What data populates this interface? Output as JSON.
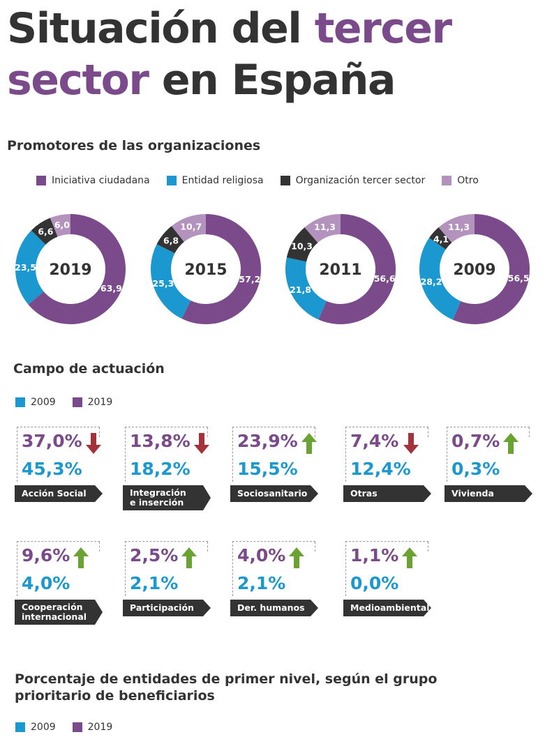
{
  "title": {
    "line1_dark": "Situación del",
    "line1_accent": "tercer",
    "line2_accent": "sector",
    "line2_dark": "en España"
  },
  "colors": {
    "purple": "#7a4a8a",
    "blue": "#1a98cf",
    "dark": "#333333",
    "light_purple": "#b393be",
    "up": "#6aa332",
    "down": "#a3323a"
  },
  "sections": {
    "promotores": "Promotores de las organizaciones",
    "campo": "Campo de actuación",
    "beneficiarios_line1": "Porcentaje de entidades de primer nivel, según el grupo",
    "beneficiarios_line2": "prioritario de beneficiarios"
  },
  "legend_promotores": [
    {
      "label": "Iniciativa ciudadana",
      "color": "#7a4a8a"
    },
    {
      "label": "Entidad religiosa",
      "color": "#1a98cf"
    },
    {
      "label": "Organización tercer sector",
      "color": "#333333"
    },
    {
      "label": "Otro",
      "color": "#b393be"
    }
  ],
  "legend_years": [
    {
      "label": "2009",
      "color": "#1a98cf"
    },
    {
      "label": "2019",
      "color": "#7a4a8a"
    }
  ],
  "legend_years_2": [
    {
      "label": "2009",
      "color": "#1a98cf"
    },
    {
      "label": "2019",
      "color": "#7a4a8a"
    }
  ],
  "chart_data": [
    {
      "type": "pie",
      "title": "Promotores de las organizaciones",
      "series_names": [
        "Iniciativa ciudadana",
        "Entidad religiosa",
        "Organización tercer sector",
        "Otro"
      ],
      "donuts": [
        {
          "year": "2019",
          "values": [
            63.9,
            23.5,
            6.6,
            6.0
          ],
          "labels": [
            "63,9",
            "23,5",
            "6,6",
            "6,0"
          ]
        },
        {
          "year": "2015",
          "values": [
            57.2,
            25.3,
            6.8,
            10.7
          ],
          "labels": [
            "57,2",
            "25,3",
            "6,8",
            "10,7"
          ]
        },
        {
          "year": "2011",
          "values": [
            56.6,
            21.8,
            10.3,
            11.3
          ],
          "labels": [
            "56,6",
            "21,8",
            "10,3",
            "11,3"
          ]
        },
        {
          "year": "2009",
          "values": [
            56.5,
            28.2,
            4.1,
            11.3
          ],
          "labels": [
            "56,5",
            "28,2",
            "4,1",
            "11,3"
          ]
        }
      ]
    },
    {
      "type": "table",
      "title": "Campo de actuación",
      "columns": [
        "2019",
        "2009"
      ],
      "rows": [
        {
          "label": "Acción Social",
          "v2019": "37,0%",
          "v2009": "45,3%",
          "trend": "down"
        },
        {
          "label": "Integración e inserción",
          "v2019": "13,8%",
          "v2009": "18,2%",
          "trend": "down"
        },
        {
          "label": "Sociosanitario",
          "v2019": "23,9%",
          "v2009": "15,5%",
          "trend": "up"
        },
        {
          "label": "Otras",
          "v2019": "7,4%",
          "v2009": "12,4%",
          "trend": "down"
        },
        {
          "label": "Vivienda",
          "v2019": "0,7%",
          "v2009": "0,3%",
          "trend": "up"
        },
        {
          "label": "Cooperación internacional",
          "v2019": "9,6%",
          "v2009": "4,0%",
          "trend": "up"
        },
        {
          "label": "Participación",
          "v2019": "2,5%",
          "v2009": "2,1%",
          "trend": "up"
        },
        {
          "label": "Der. humanos",
          "v2019": "4,0%",
          "v2009": "2,1%",
          "trend": "up"
        },
        {
          "label": "Medioambiental",
          "v2019": "1,1%",
          "v2009": "0,0%",
          "trend": "up"
        }
      ]
    }
  ]
}
